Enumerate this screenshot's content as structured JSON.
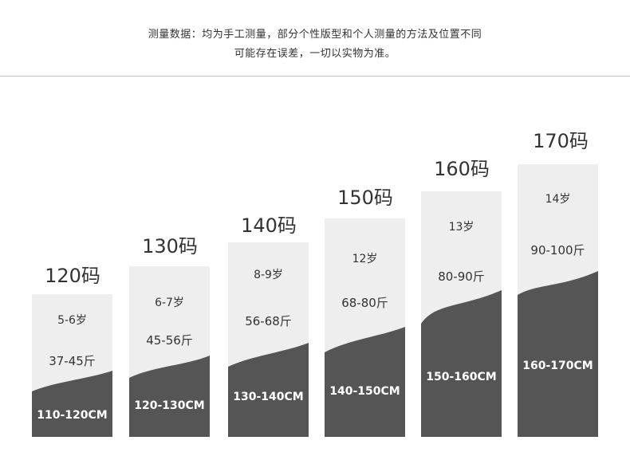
{
  "note": {
    "line1": "测量数据：均为手工测量，部分个性版型和个人测量的方法及位置不同",
    "line2": "可能存在误差，一切以实物为准。"
  },
  "colors": {
    "card_light": "#eeeeee",
    "card_dark": "#555555"
  },
  "sizes": [
    {
      "label": "120码",
      "age": "5-6岁",
      "weight": "37-45斤",
      "height": "110-120CM"
    },
    {
      "label": "130码",
      "age": "6-7岁",
      "weight": "45-56斤",
      "height": "120-130CM"
    },
    {
      "label": "140码",
      "age": "8-9岁",
      "weight": "56-68斤",
      "height": "130-140CM"
    },
    {
      "label": "150码",
      "age": "12岁",
      "weight": "68-80斤",
      "height": "140-150CM"
    },
    {
      "label": "160码",
      "age": "13岁",
      "weight": "80-90斤",
      "height": "150-160CM"
    },
    {
      "label": "170码",
      "age": "14岁",
      "weight": "90-100斤",
      "height": "160-170CM"
    }
  ]
}
